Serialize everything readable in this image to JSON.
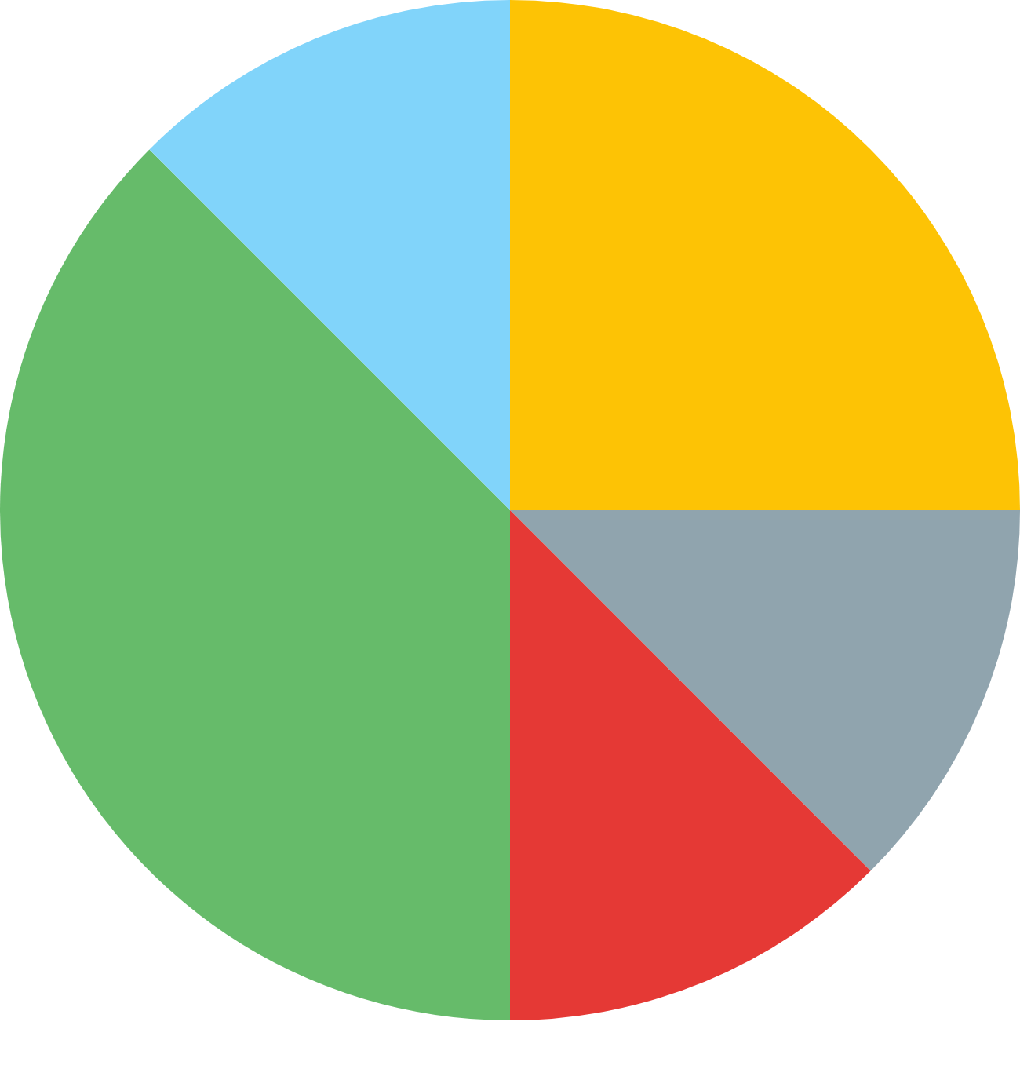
{
  "chart_data": {
    "type": "pie",
    "categories": [
      null,
      null,
      null,
      null,
      null
    ],
    "values": [
      25,
      12.5,
      12.5,
      37.5,
      12.5
    ],
    "colors": [
      "#fdc305",
      "#90a4ae",
      "#e53935",
      "#66bb6a",
      "#81d4fa"
    ],
    "legend": false
  }
}
